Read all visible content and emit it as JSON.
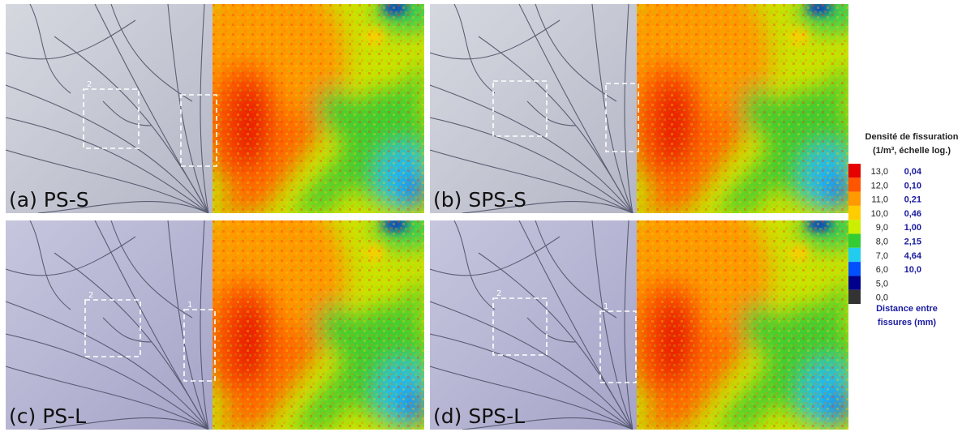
{
  "panels": [
    {
      "label": "(a) PS-S",
      "box_labels": [
        "2"
      ]
    },
    {
      "label": "(b) SPS-S",
      "box_labels": []
    },
    {
      "label": "(c) PS-L",
      "box_labels": [
        "2",
        "1"
      ]
    },
    {
      "label": "(d) SPS-L",
      "box_labels": [
        "2",
        "1"
      ]
    }
  ],
  "legend": {
    "title": "Densité de fissuration",
    "subtitle": "(1/m³, échelle log.)",
    "rows": [
      {
        "density": "13,0",
        "distance": "0,04",
        "color": "#e60000"
      },
      {
        "density": "12,0",
        "distance": "0,10",
        "color": "#ff5500"
      },
      {
        "density": "11,0",
        "distance": "0,21",
        "color": "#ff9900"
      },
      {
        "density": "10,0",
        "distance": "0,46",
        "color": "#ffcc00"
      },
      {
        "density": "9,0",
        "distance": "1,00",
        "color": "#ccee00"
      },
      {
        "density": "8,0",
        "distance": "2,15",
        "color": "#33cc33"
      },
      {
        "density": "7,0",
        "distance": "4,64",
        "color": "#22ccee"
      },
      {
        "density": "6,0",
        "distance": "10,0",
        "color": "#0050ff"
      },
      {
        "density": "5,0",
        "color": "#00008c"
      },
      {
        "density": "0,0",
        "color": "#333333"
      }
    ],
    "footer": [
      "Distance entre",
      "fissures (mm)"
    ]
  }
}
